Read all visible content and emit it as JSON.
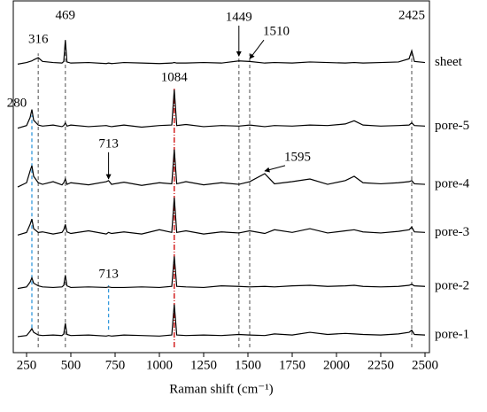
{
  "chart_data": {
    "type": "line",
    "xlabel": "Raman shift (cm⁻¹)",
    "xlim": [
      175,
      2525
    ],
    "xticks": [
      250,
      500,
      750,
      1000,
      1250,
      1500,
      1750,
      2000,
      2250,
      2500
    ],
    "ylim": [
      -0.3,
      6.3
    ],
    "x": [
      200,
      250,
      270,
      280,
      290,
      316,
      340,
      400,
      450,
      460,
      469,
      478,
      500,
      600,
      700,
      713,
      730,
      800,
      900,
      1000,
      1070,
      1084,
      1098,
      1150,
      1250,
      1350,
      1449,
      1510,
      1595,
      1650,
      1750,
      1850,
      1950,
      2050,
      2100,
      2150,
      2250,
      2350,
      2410,
      2425,
      2440,
      2500
    ],
    "series": [
      {
        "name": "pore-1",
        "color": "#000000",
        "values": [
          0,
          0.02,
          0.1,
          0.15,
          0.08,
          0.03,
          0.02,
          0.03,
          0.02,
          0.05,
          0.25,
          0.04,
          0.02,
          0.03,
          0.01,
          0.02,
          0.01,
          0.03,
          0.02,
          0.01,
          0.03,
          0.6,
          0.03,
          0.02,
          0.03,
          0.02,
          0.04,
          0.03,
          0.02,
          0.05,
          0.03,
          0.08,
          0.04,
          0.06,
          0.05,
          0.04,
          0.03,
          0.05,
          0.08,
          0.12,
          0.04,
          0.03
        ]
      },
      {
        "name": "pore-2",
        "color": "#000000",
        "values": [
          0.9,
          0.93,
          1.02,
          1.1,
          1.0,
          0.95,
          0.93,
          0.92,
          0.93,
          0.96,
          1.15,
          0.95,
          0.92,
          0.93,
          0.92,
          0.93,
          0.92,
          0.92,
          0.93,
          0.92,
          0.94,
          1.5,
          0.94,
          0.93,
          0.92,
          0.95,
          0.94,
          0.93,
          0.94,
          0.93,
          0.95,
          0.96,
          0.94,
          0.95,
          0.96,
          0.94,
          0.93,
          0.94,
          0.96,
          0.98,
          0.95,
          0.94
        ]
      },
      {
        "name": "pore-3",
        "color": "#000000",
        "values": [
          1.9,
          1.95,
          2.1,
          2.2,
          2.02,
          1.95,
          1.96,
          1.92,
          1.95,
          2.0,
          2.1,
          1.96,
          1.93,
          1.98,
          1.92,
          1.95,
          1.93,
          1.96,
          1.92,
          2.0,
          1.95,
          2.6,
          1.95,
          1.98,
          1.92,
          1.96,
          1.94,
          1.98,
          1.93,
          2.0,
          1.95,
          2.02,
          1.94,
          1.98,
          2.0,
          1.96,
          1.94,
          1.97,
          2.0,
          2.05,
          1.96,
          1.95
        ]
      },
      {
        "name": "pore-4",
        "color": "#000000",
        "values": [
          2.8,
          2.88,
          3.1,
          3.2,
          3.0,
          2.88,
          2.85,
          2.9,
          2.84,
          2.88,
          2.95,
          2.85,
          2.88,
          2.84,
          2.9,
          2.92,
          2.85,
          2.89,
          2.83,
          2.88,
          2.86,
          3.5,
          2.86,
          2.9,
          2.84,
          2.88,
          2.85,
          2.9,
          3.05,
          2.86,
          2.9,
          2.95,
          2.85,
          2.92,
          3.0,
          2.88,
          2.86,
          2.88,
          2.9,
          2.92,
          2.86,
          2.85
        ]
      },
      {
        "name": "pore-5",
        "color": "#000000",
        "values": [
          3.9,
          3.95,
          4.1,
          4.25,
          4.05,
          3.96,
          3.94,
          3.96,
          3.93,
          3.95,
          4.0,
          3.94,
          3.96,
          3.93,
          3.95,
          3.94,
          3.93,
          3.96,
          3.92,
          3.95,
          3.96,
          4.62,
          3.95,
          3.97,
          3.93,
          3.95,
          3.94,
          3.96,
          3.93,
          3.95,
          3.94,
          3.96,
          3.95,
          3.98,
          4.04,
          3.96,
          3.94,
          3.95,
          3.96,
          4.0,
          3.95,
          3.94
        ]
      },
      {
        "name": "sheet",
        "color": "#000000",
        "values": [
          5.1,
          5.13,
          5.15,
          5.16,
          5.18,
          5.22,
          5.15,
          5.13,
          5.12,
          5.15,
          5.55,
          5.14,
          5.12,
          5.13,
          5.11,
          5.12,
          5.11,
          5.13,
          5.12,
          5.11,
          5.12,
          5.13,
          5.12,
          5.12,
          5.13,
          5.12,
          5.16,
          5.15,
          5.12,
          5.13,
          5.12,
          5.14,
          5.13,
          5.12,
          5.13,
          5.12,
          5.13,
          5.14,
          5.2,
          5.35,
          5.15,
          5.13
        ]
      }
    ],
    "reference_lines": [
      {
        "x": 316,
        "y": [
          -0.2,
          5.3
        ],
        "color": "#777777",
        "dash": "4 3"
      },
      {
        "x": 469,
        "y": [
          -0.2,
          5.5
        ],
        "color": "#777777",
        "dash": "4 3"
      },
      {
        "x": 1449,
        "y": [
          -0.2,
          5.3
        ],
        "color": "#777777",
        "dash": "4 3"
      },
      {
        "x": 1510,
        "y": [
          -0.2,
          5.3
        ],
        "color": "#777777",
        "dash": "4 3"
      },
      {
        "x": 2425,
        "y": [
          -0.2,
          5.3
        ],
        "color": "#777777",
        "dash": "4 3"
      },
      {
        "x": 1084,
        "y": [
          -0.2,
          4.64
        ],
        "color": "#cc0000",
        "dash": "6 2 1 2"
      },
      {
        "x": 280,
        "y": [
          0.16,
          4.14
        ],
        "color": "#3399dd",
        "dash": "4 3"
      },
      {
        "x": 713,
        "y": [
          0.13,
          0.96
        ],
        "color": "#3399dd",
        "dash": "4 3"
      }
    ],
    "annotations": [
      {
        "text": "469",
        "x": 469,
        "text_x": 469,
        "y": 6.0
      },
      {
        "text": "316",
        "x": 316,
        "text_x": 316,
        "y": 5.55
      },
      {
        "text": "1449",
        "x": 1449,
        "text_x": 1449,
        "y": 5.97,
        "arrow_to": 5.25
      },
      {
        "text": "1510",
        "x": 1510,
        "text_x": 1660,
        "y": 5.7,
        "arrow_to": 5.2
      },
      {
        "text": "2425",
        "x": 2425,
        "text_x": 2425,
        "y": 6.0
      },
      {
        "text": "1084",
        "x": 1084,
        "text_x": 1084,
        "y": 4.84
      },
      {
        "text": "280",
        "x": 280,
        "text_x": 195,
        "y": 4.36
      },
      {
        "text": "713",
        "x": 713,
        "text_x": 713,
        "y": 3.6,
        "arrow_to": 2.95
      },
      {
        "text": "1595",
        "x": 1595,
        "text_x": 1780,
        "y": 3.35,
        "arrow_to": 3.1
      },
      {
        "text": "713",
        "x": 713,
        "text_x": 713,
        "y": 1.16
      }
    ]
  }
}
